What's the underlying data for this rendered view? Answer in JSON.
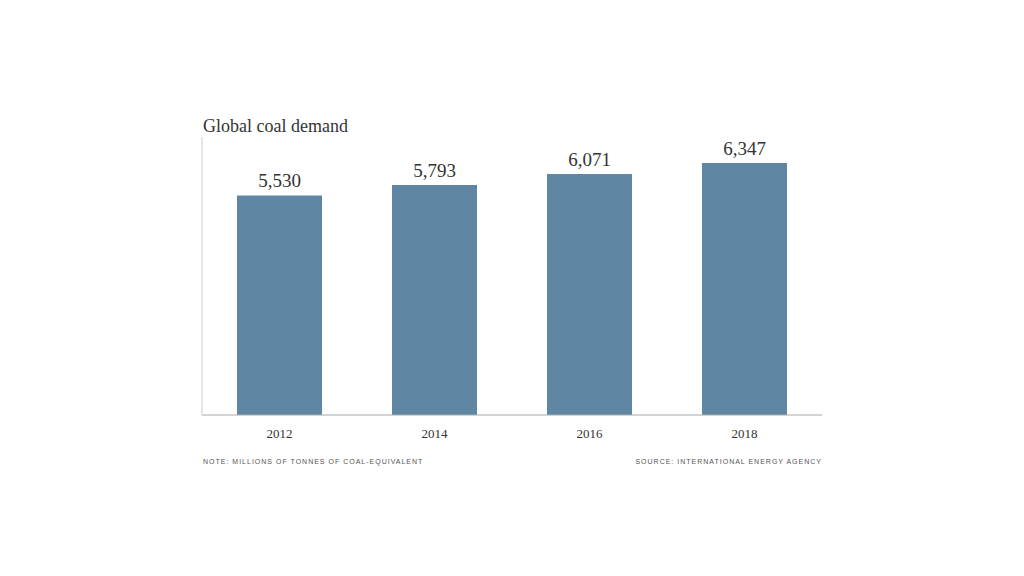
{
  "chart_data": {
    "type": "bar",
    "title": "Global coal demand",
    "categories": [
      "2012",
      "2014",
      "2016",
      "2018"
    ],
    "values": [
      5530,
      5793,
      6071,
      6347
    ],
    "value_labels": [
      "5,530",
      "5,793",
      "6,071",
      "6,347"
    ],
    "color": "#5f87a4",
    "ylim": [
      0,
      7000
    ],
    "grid": false,
    "data_labels": true,
    "tick_labels": "x",
    "note": "NOTE: MILLIONS OF TONNES OF COAL-EQUIVALENT",
    "source": "SOURCE: INTERNATIONAL ENERGY AGENCY"
  }
}
